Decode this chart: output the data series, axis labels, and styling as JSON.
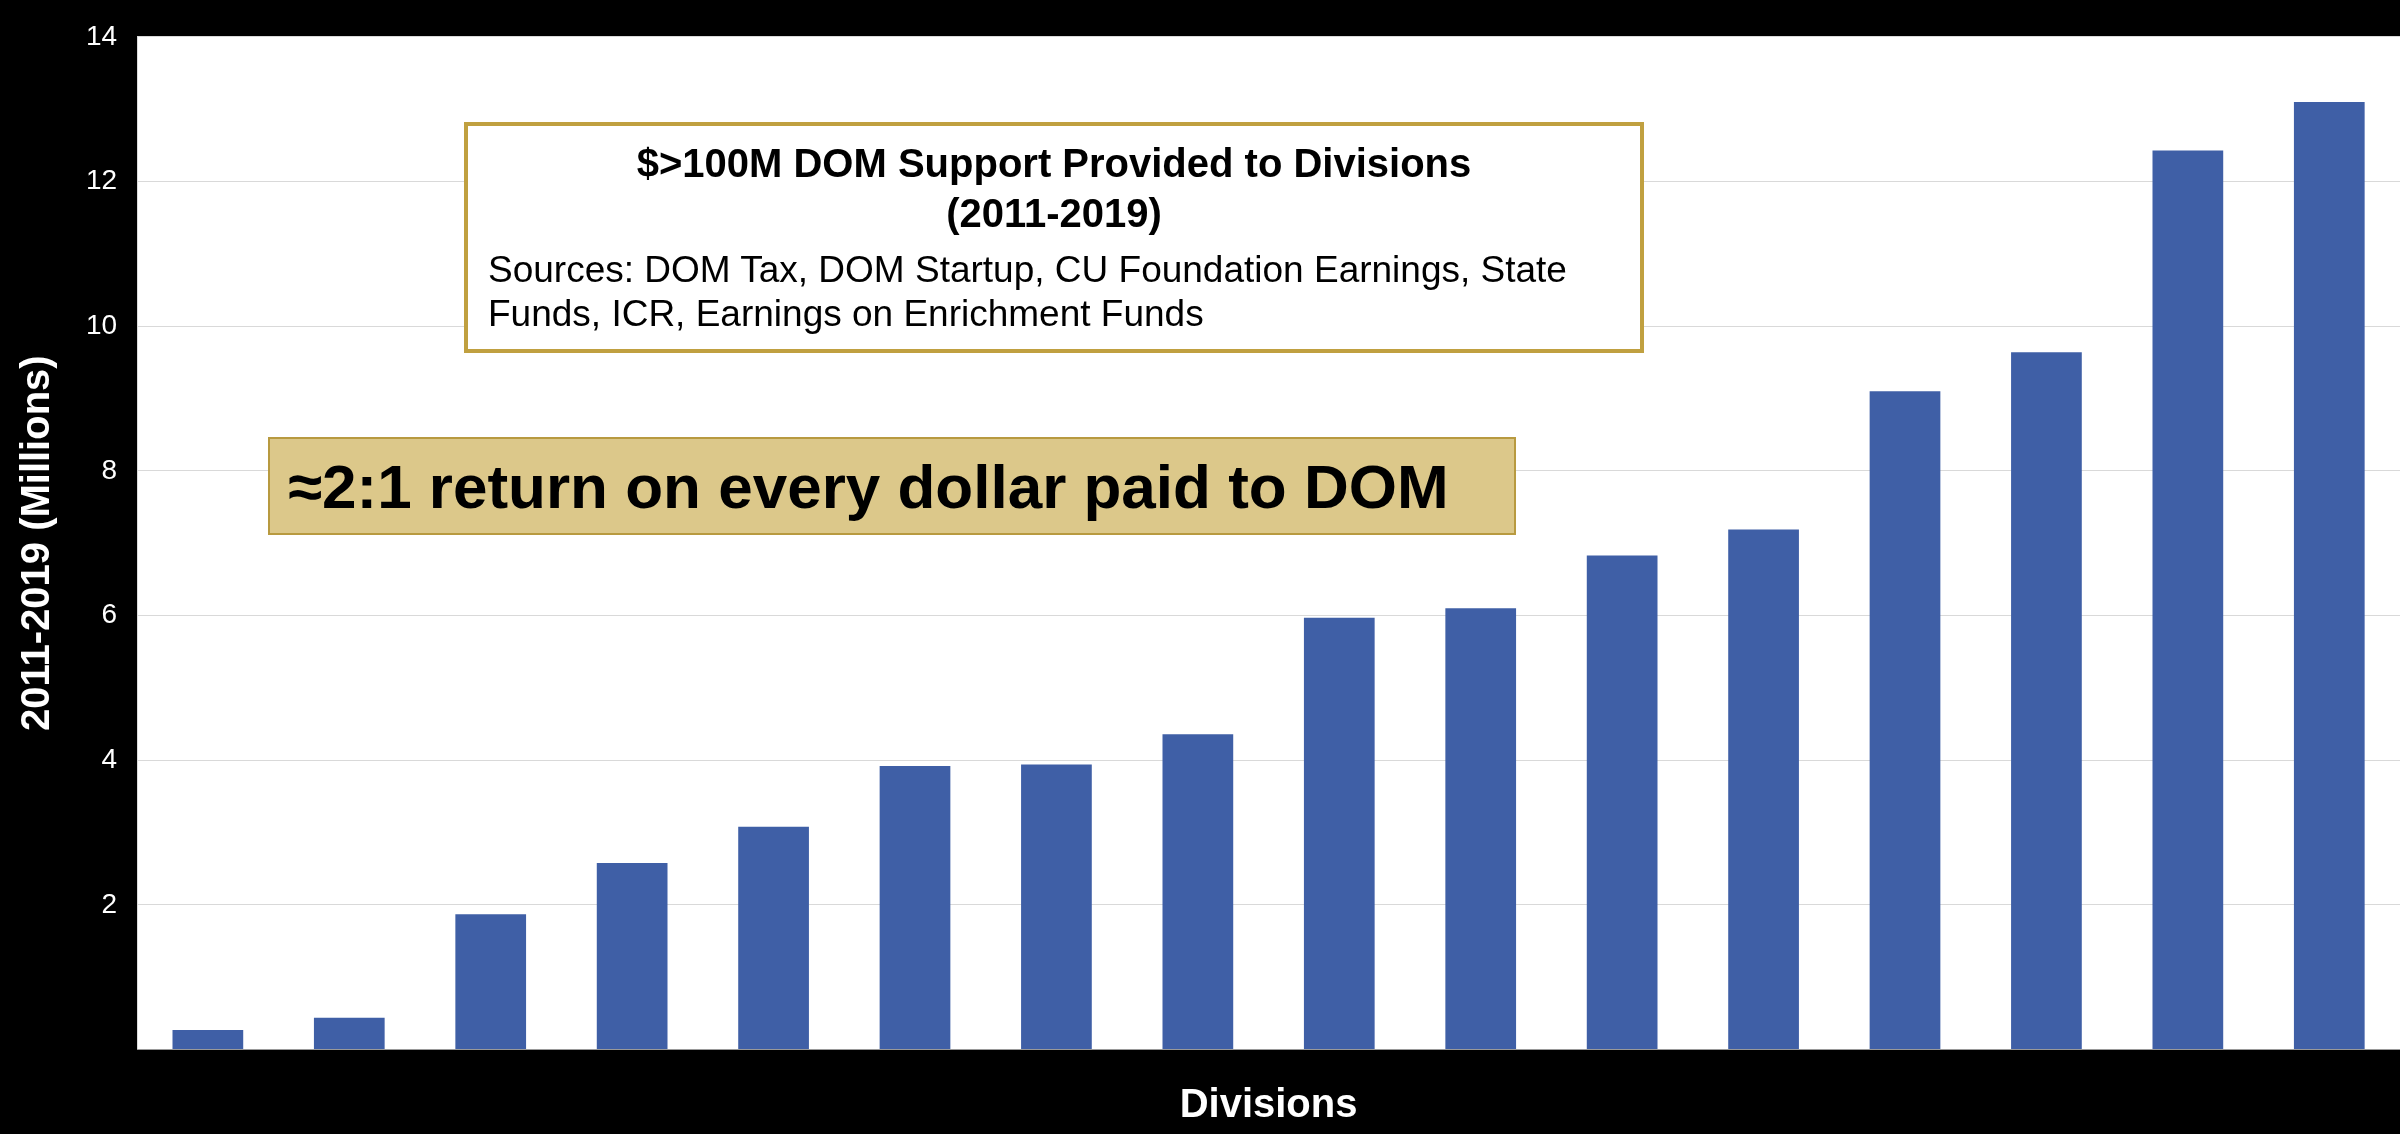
{
  "chart_data": {
    "type": "bar",
    "title": "$>100M DOM Support Provided to Divisions\n(2011-2019)",
    "xlabel": "Divisions",
    "ylabel": "2011-2019 (Millions)",
    "annotations": [
      "Sources:  DOM Tax, DOM Startup, CU Foundation Earnings, State Funds, ICR, Earnings on Enrichment Funds",
      "≈2:1 return on every dollar paid to DOM"
    ],
    "categories": [
      null,
      null,
      null,
      null,
      null,
      null,
      null,
      null,
      null,
      null,
      null,
      null,
      null,
      null,
      null,
      null
    ],
    "values": [
      0.27,
      0.44,
      1.87,
      2.58,
      3.08,
      3.92,
      3.94,
      4.36,
      5.97,
      6.1,
      6.83,
      7.19,
      9.1,
      9.64,
      12.43,
      13.1
    ],
    "color": "#3f5fa6",
    "ylim": [
      0,
      14
    ],
    "yticks": [
      {
        "value": 0,
        "label": null
      },
      2,
      4,
      6,
      8,
      10,
      12,
      14
    ],
    "grid": "y",
    "legend": false
  }
}
